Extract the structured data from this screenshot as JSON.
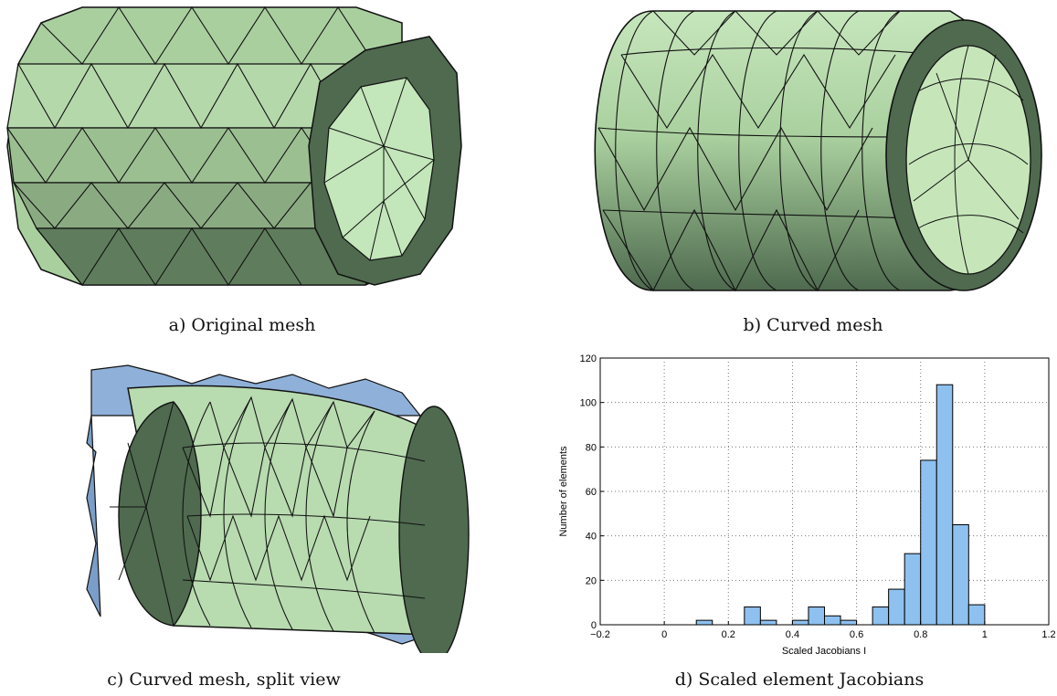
{
  "figure": {
    "captions": {
      "a": "a) Original mesh",
      "b": "b) Curved mesh",
      "c": "c) Curved mesh, split view",
      "d": "d) Scaled element Jacobians"
    }
  },
  "colors": {
    "mesh_green": "#b9dcb0",
    "mesh_dark": "#4f6a4f",
    "split_blue": "#8fb0d8",
    "bar_fill": "#8ec1ef",
    "edge": "#111111"
  },
  "chart_data": {
    "type": "bar",
    "xlabel": "Scaled Jacobians I",
    "ylabel": "Number of elements",
    "xlim": [
      -0.2,
      1.2
    ],
    "ylim": [
      0,
      120
    ],
    "xticks": [
      -0.2,
      0,
      0.2,
      0.4,
      0.6,
      0.8,
      1,
      1.2
    ],
    "xtick_labels": [
      "−0.2",
      "0",
      "0.2",
      "0.4",
      "0.6",
      "0.8",
      "1",
      "1.2"
    ],
    "yticks": [
      0,
      20,
      40,
      60,
      80,
      100,
      120
    ],
    "bin_width": 0.05,
    "bins": [
      {
        "x0": 0.1,
        "count": 2
      },
      {
        "x0": 0.25,
        "count": 8
      },
      {
        "x0": 0.3,
        "count": 2
      },
      {
        "x0": 0.4,
        "count": 2
      },
      {
        "x0": 0.45,
        "count": 8
      },
      {
        "x0": 0.5,
        "count": 4
      },
      {
        "x0": 0.55,
        "count": 2
      },
      {
        "x0": 0.65,
        "count": 8
      },
      {
        "x0": 0.7,
        "count": 16
      },
      {
        "x0": 0.75,
        "count": 32
      },
      {
        "x0": 0.8,
        "count": 74
      },
      {
        "x0": 0.85,
        "count": 108
      },
      {
        "x0": 0.9,
        "count": 45
      },
      {
        "x0": 0.95,
        "count": 9
      }
    ],
    "grid": true
  }
}
